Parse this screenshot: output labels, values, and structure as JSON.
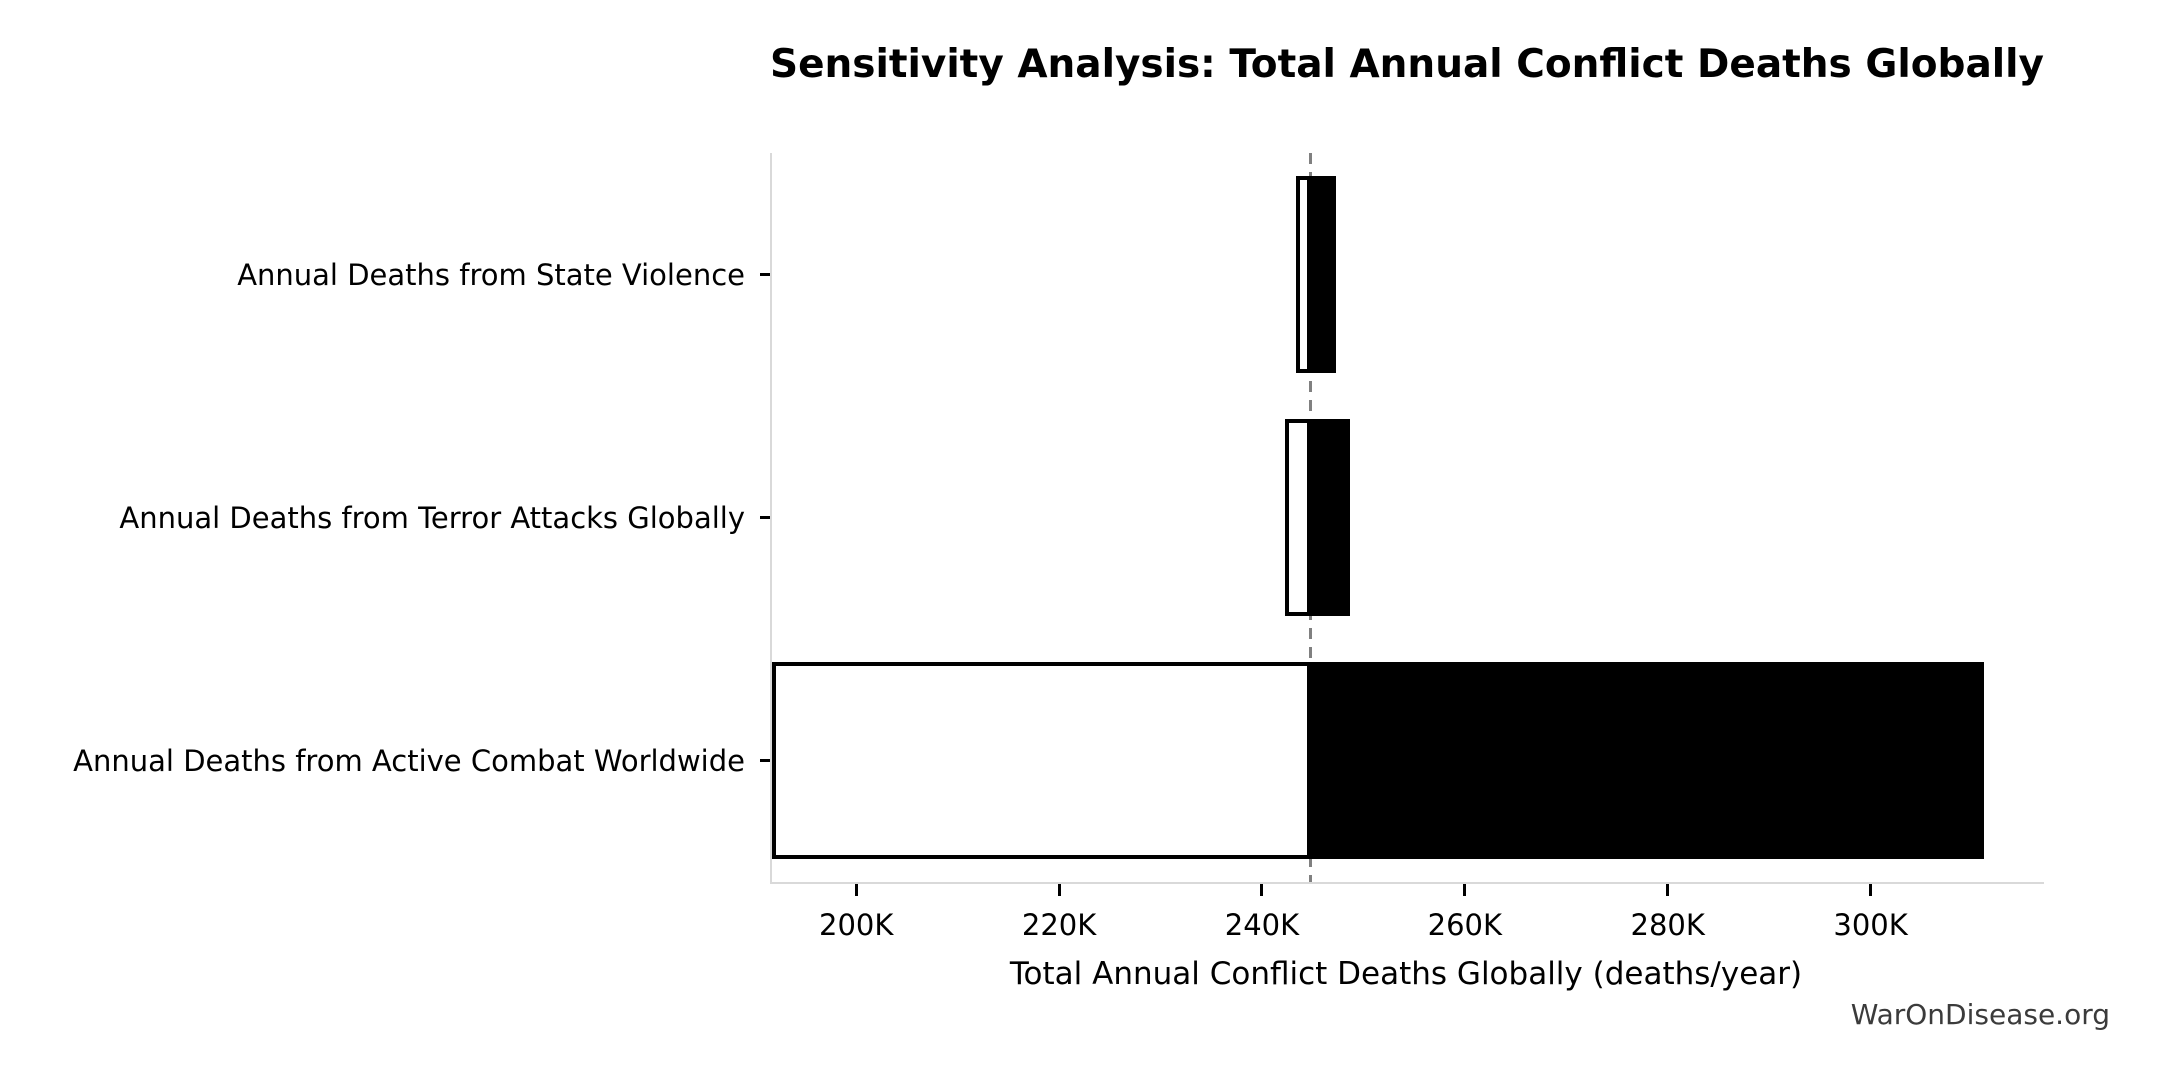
{
  "title": {
    "text": "Sensitivity Analysis: Total Annual Conflict Deaths Globally"
  },
  "watermark": {
    "text": "WarOnDisease.org",
    "color": "#3b3b3b"
  },
  "chart_data": {
    "type": "bar",
    "subtype": "tornado-sensitivity",
    "title": "Sensitivity Analysis: Total Annual Conflict Deaths Globally",
    "xlabel": "Total Annual Conflict Deaths Globally (deaths/year)",
    "ylabel": "",
    "orientation": "horizontal",
    "baseline": 244600,
    "xlim": [
      191500,
      316900
    ],
    "grid": false,
    "legend": "none",
    "x_ticks": [
      {
        "value": 200000,
        "label": "200K"
      },
      {
        "value": 220000,
        "label": "220K"
      },
      {
        "value": 240000,
        "label": "240K"
      },
      {
        "value": 260000,
        "label": "260K"
      },
      {
        "value": 280000,
        "label": "280K"
      },
      {
        "value": 300000,
        "label": "300K"
      }
    ],
    "bars": [
      {
        "label": "Annual Deaths from State Violence",
        "low": 243150,
        "high": 247150
      },
      {
        "label": "Annual Deaths from Terror Attacks Globally",
        "low": 242050,
        "high": 248500
      },
      {
        "label": "Annual Deaths from Active Combat Worldwide",
        "low": 191500,
        "high": 311000
      }
    ],
    "colors": {
      "low_fill": "#ffffff",
      "high_fill": "#000000",
      "bar_edge": "#000000",
      "baseline_line": "#808080",
      "spine": "#d9d9d9",
      "tick": "#000000",
      "text": "#000000"
    }
  }
}
